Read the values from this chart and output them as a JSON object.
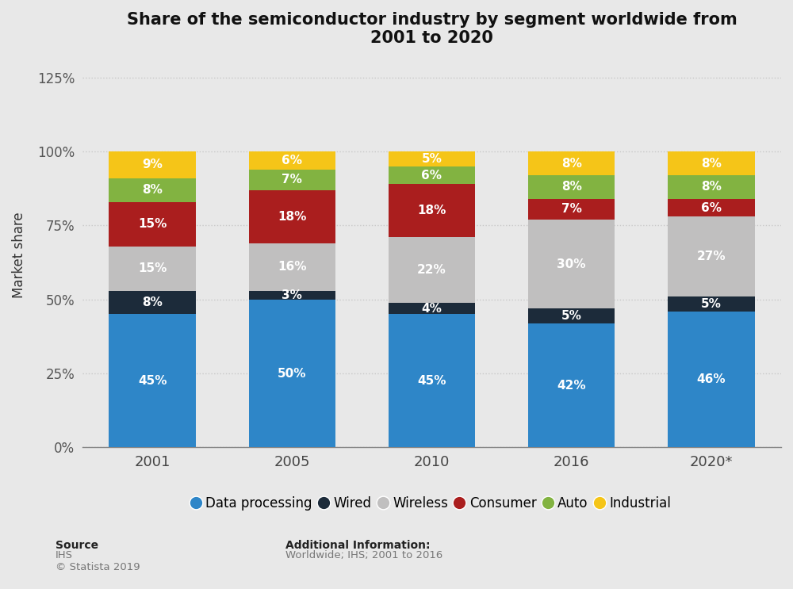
{
  "title": "Share of the semiconductor industry by segment worldwide from\n2001 to 2020",
  "years": [
    "2001",
    "2005",
    "2010",
    "2016",
    "2020*"
  ],
  "segments": [
    "Data processing",
    "Wired",
    "Wireless",
    "Consumer",
    "Auto",
    "Industrial"
  ],
  "values": {
    "Data processing": [
      45,
      50,
      45,
      42,
      46
    ],
    "Wired": [
      8,
      3,
      4,
      5,
      5
    ],
    "Wireless": [
      15,
      16,
      22,
      30,
      27
    ],
    "Consumer": [
      15,
      18,
      18,
      7,
      6
    ],
    "Auto": [
      8,
      7,
      6,
      8,
      8
    ],
    "Industrial": [
      9,
      6,
      5,
      8,
      8
    ]
  },
  "colors": {
    "Data processing": "#2e86c8",
    "Wired": "#1c2b3a",
    "Wireless": "#c0bfbf",
    "Consumer": "#aa1e1e",
    "Auto": "#82b341",
    "Industrial": "#f5c518"
  },
  "ylabel": "Market share",
  "ylim": [
    0,
    130
  ],
  "yticks": [
    0,
    25,
    50,
    75,
    100,
    125
  ],
  "ytick_labels": [
    "0%",
    "25%",
    "50%",
    "75%",
    "100%",
    "125%"
  ],
  "background_color": "#e8e8e8",
  "plot_background_color": "#e8e8e8",
  "bar_width": 0.62,
  "source_text": "Source\nIHS\n© Statista 2019",
  "source_bold": "Source",
  "additional_info_bold": "Additional Information:",
  "additional_info_normal": "Worldwide; IHS; 2001 to 2016",
  "grid_color": "#c8c8c8",
  "grid_style": "dotted"
}
